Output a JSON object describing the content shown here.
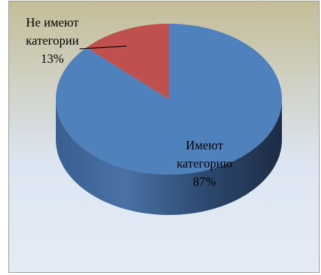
{
  "chart_data": {
    "type": "pie",
    "three_d": true,
    "legend": "none",
    "title": "",
    "slices": [
      {
        "label_line1": "Имеют",
        "label_line2": "категорию",
        "percent_label": "87%",
        "value": 87,
        "color": "#4f81bd"
      },
      {
        "label_line1": "Не имеют",
        "label_line2": "категории",
        "percent_label": "13%",
        "value": 13,
        "color": "#c0504d"
      }
    ],
    "background_gradient": [
      "#c4bd97",
      "#dce6f2"
    ]
  }
}
